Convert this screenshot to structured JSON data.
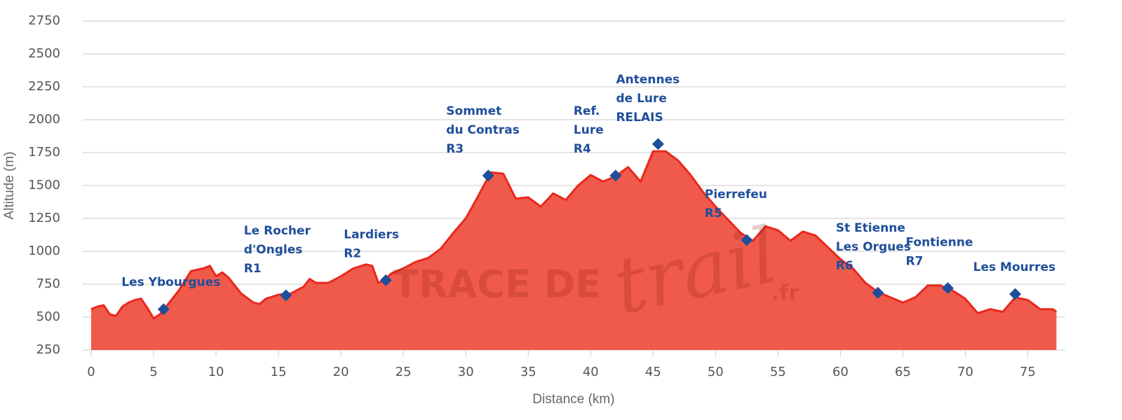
{
  "chart_data": {
    "type": "area",
    "x_label": "Distance (km)",
    "y_label": "Altitude (m)",
    "watermark": [
      "TRACE DE",
      "trail",
      ".fr"
    ],
    "xlim": [
      0,
      78
    ],
    "ylim": [
      250,
      2750
    ],
    "xticks": [
      0,
      5,
      10,
      15,
      20,
      25,
      30,
      35,
      40,
      45,
      50,
      55,
      60,
      65,
      70,
      75
    ],
    "yticks": [
      250,
      500,
      750,
      1000,
      1250,
      1500,
      1750,
      2000,
      2250,
      2500,
      2750
    ],
    "grid": true,
    "x": [
      0,
      0.5,
      1,
      1.5,
      2,
      2.5,
      3,
      3.5,
      4,
      4.5,
      5,
      5.5,
      6,
      7,
      8,
      9,
      9.5,
      10,
      10.5,
      11,
      12,
      13,
      13.5,
      14,
      15,
      16,
      17,
      17.5,
      18,
      19,
      20,
      21,
      22,
      22.5,
      23,
      23.5,
      24,
      25,
      26,
      27,
      28,
      29,
      30,
      31,
      32,
      33,
      34,
      35,
      36,
      37,
      38,
      39,
      40,
      41,
      42,
      43,
      44,
      45,
      46,
      47,
      48,
      49,
      50,
      51,
      52,
      53,
      54,
      55,
      56,
      57,
      58,
      59,
      60,
      61,
      62,
      63,
      64,
      65,
      66,
      67,
      68,
      69,
      70,
      71,
      72,
      73,
      74,
      75,
      76,
      77,
      77.3
    ],
    "series": [
      {
        "color": "#e8281e",
        "fill": "#f05a4a",
        "values": [
          560,
          580,
          590,
          520,
          510,
          580,
          610,
          630,
          640,
          570,
          490,
          520,
          580,
          700,
          850,
          870,
          890,
          810,
          840,
          800,
          680,
          610,
          600,
          640,
          670,
          680,
          730,
          790,
          760,
          760,
          810,
          870,
          900,
          890,
          760,
          780,
          830,
          870,
          920,
          950,
          1020,
          1140,
          1250,
          1420,
          1600,
          1590,
          1400,
          1410,
          1340,
          1440,
          1390,
          1500,
          1580,
          1530,
          1570,
          1640,
          1530,
          1760,
          1760,
          1690,
          1580,
          1450,
          1340,
          1240,
          1140,
          1080,
          1190,
          1160,
          1080,
          1150,
          1120,
          1030,
          940,
          870,
          760,
          690,
          650,
          610,
          650,
          740,
          740,
          700,
          640,
          530,
          560,
          540,
          650,
          630,
          560,
          560,
          540
        ]
      }
    ],
    "waypoints": {
      "color": "#1f4e9a",
      "x": [
        5.8,
        15.6,
        23.6,
        31.8,
        42,
        45.4,
        52.5,
        63,
        68.6,
        74
      ],
      "values": [
        560,
        665,
        780,
        1575,
        1575,
        1815,
        1085,
        685,
        720,
        675
      ],
      "labels": [
        [
          "Les Ybourgues"
        ],
        [
          "Le Rocher",
          "d'Ongles",
          "R1"
        ],
        [
          "Lardiers",
          "R2"
        ],
        [
          "Sommet",
          "du Contras",
          "R3"
        ],
        [
          "Ref.",
          "Lure",
          "R4"
        ],
        [
          "Antennes",
          "de Lure",
          "RELAIS"
        ],
        [
          "Pierrefeu",
          "R5"
        ],
        [
          "St Etienne",
          "Les Orgues",
          "R6"
        ],
        [
          "Fontienne",
          "R7"
        ],
        [
          "Les Mourres"
        ]
      ]
    }
  }
}
